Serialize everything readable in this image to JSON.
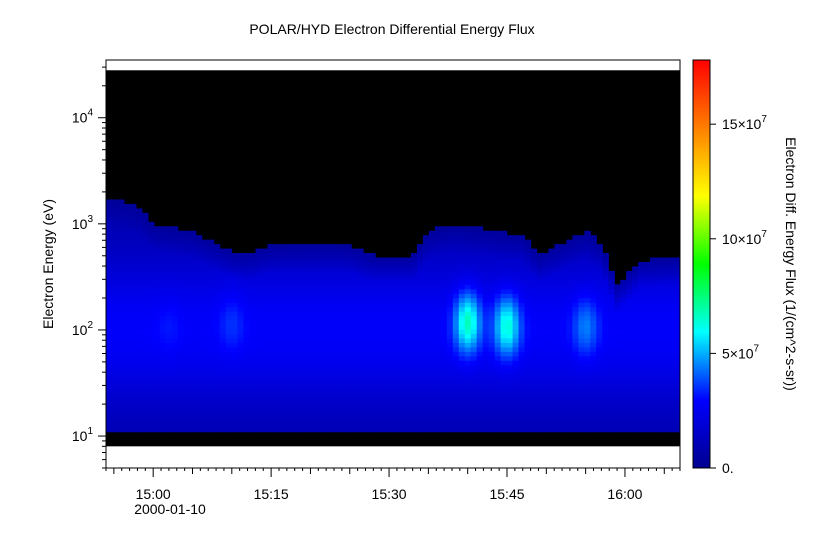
{
  "chart_data": {
    "type": "heatmap",
    "title": "POLAR/HYD  Electron Differential Energy Flux",
    "ylabel": "Electron Energy (eV)",
    "colorbar_label": "Electron Diff. Energy Flux (1/(cm^2-s-sr))",
    "x_date_label": "2000-01-10",
    "x_range_minutes": [
      "14:54",
      "16:07"
    ],
    "x_ticks": [
      {
        "time": "15:00",
        "label": "15:00"
      },
      {
        "time": "15:15",
        "label": "15:15"
      },
      {
        "time": "15:30",
        "label": "15:30"
      },
      {
        "time": "15:45",
        "label": "15:45"
      },
      {
        "time": "16:00",
        "label": "16:00"
      }
    ],
    "y_scale": "log",
    "y_range": [
      5,
      35000
    ],
    "y_ticks": [
      {
        "value": 10,
        "base": "10",
        "exp": "1"
      },
      {
        "value": 100,
        "base": "10",
        "exp": "2"
      },
      {
        "value": 1000,
        "base": "10",
        "exp": "3"
      },
      {
        "value": 10000,
        "base": "10",
        "exp": "4"
      }
    ],
    "colorbar_range": [
      0,
      17800000
    ],
    "colorbar_ticks": [
      {
        "value": 0,
        "label": "0."
      },
      {
        "value": 50000000,
        "base": "5×10",
        "exp": "7"
      },
      {
        "value": 100000000,
        "base": "10×10",
        "exp": "7"
      },
      {
        "value": 150000000,
        "base": "15×10",
        "exp": "7"
      }
    ],
    "data_energy_range_eV": [
      8,
      28000
    ],
    "colormap": [
      "#00008f",
      "#0000ff",
      "#00ffff",
      "#00ff00",
      "#ffff00",
      "#ff7f00",
      "#ff0000"
    ],
    "background_color": "#000000",
    "upper_boundary_eV": [
      {
        "t": "14:54",
        "e": 1800
      },
      {
        "t": "14:58",
        "e": 1500
      },
      {
        "t": "15:00",
        "e": 1000
      },
      {
        "t": "15:05",
        "e": 850
      },
      {
        "t": "15:10",
        "e": 550
      },
      {
        "t": "15:12",
        "e": 520
      },
      {
        "t": "15:15",
        "e": 620
      },
      {
        "t": "15:20",
        "e": 640
      },
      {
        "t": "15:25",
        "e": 620
      },
      {
        "t": "15:28",
        "e": 500
      },
      {
        "t": "15:33",
        "e": 500
      },
      {
        "t": "15:35",
        "e": 850
      },
      {
        "t": "15:38",
        "e": 1000
      },
      {
        "t": "15:42",
        "e": 900
      },
      {
        "t": "15:45",
        "e": 820
      },
      {
        "t": "15:47",
        "e": 800
      },
      {
        "t": "15:49",
        "e": 500
      },
      {
        "t": "15:52",
        "e": 650
      },
      {
        "t": "15:55",
        "e": 850
      },
      {
        "t": "15:57",
        "e": 650
      },
      {
        "t": "15:59",
        "e": 260
      },
      {
        "t": "16:02",
        "e": 450
      },
      {
        "t": "16:07",
        "e": 480
      }
    ],
    "lower_boundary_eV": 11,
    "intensity_peaks": [
      {
        "t": "15:40",
        "e": 120,
        "level": 0.38
      },
      {
        "t": "15:45",
        "e": 110,
        "level": 0.36
      },
      {
        "t": "15:55",
        "e": 110,
        "level": 0.25
      },
      {
        "t": "15:10",
        "e": 120,
        "level": 0.2
      },
      {
        "t": "15:02",
        "e": 110,
        "level": 0.18
      }
    ]
  }
}
